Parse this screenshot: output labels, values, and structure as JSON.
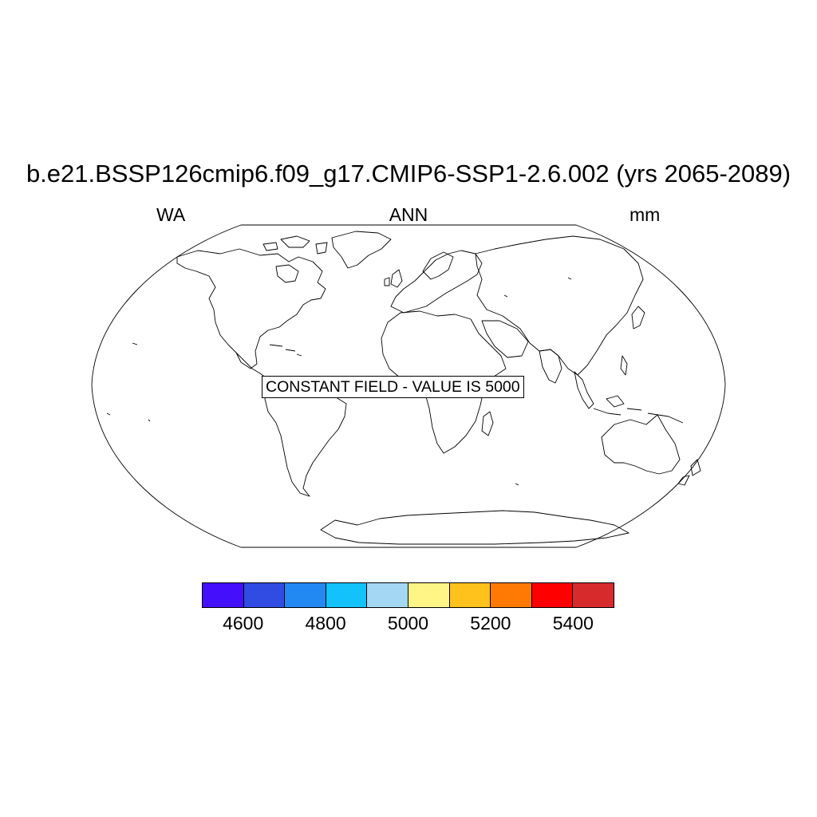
{
  "title": "b.e21.BSSP126cmip6.f09_g17.CMIP6-SSP1-2.6.002 (yrs 2065-2089)",
  "left_label": "WA",
  "center_label": "ANN",
  "right_label": "mm",
  "map_annotation": "CONSTANT FIELD - VALUE IS 5000",
  "projection": "robinson",
  "colorbar": {
    "colors": [
      "#4410fb",
      "#304ce2",
      "#2289f3",
      "#14c2fb",
      "#a4d7f3",
      "#fff586",
      "#ffc11c",
      "#ff7a04",
      "#ff0000",
      "#d72a2c"
    ],
    "tick_labels": [
      "4600",
      "4800",
      "5000",
      "5200",
      "5400"
    ]
  }
}
